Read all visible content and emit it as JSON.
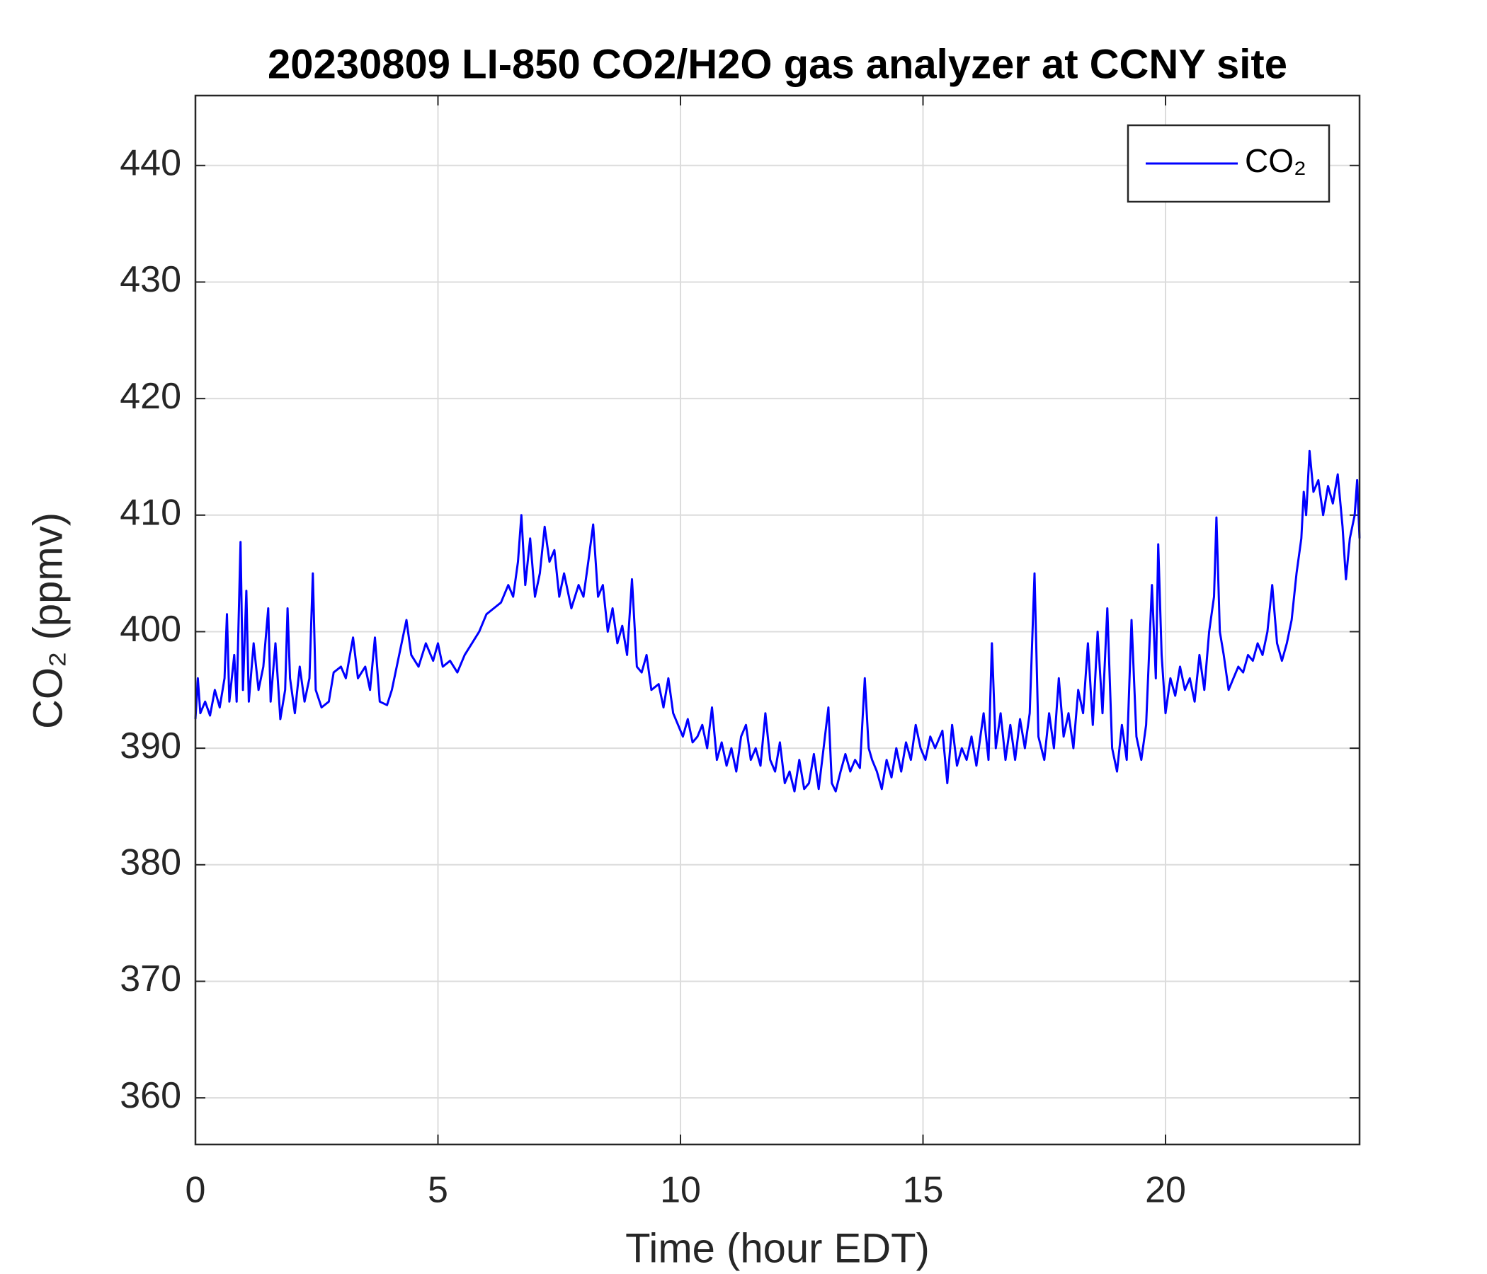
{
  "chart_data": {
    "type": "line",
    "title": "20230809 LI-850 CO2/H2O gas analyzer at CCNY site",
    "x_label": "Time (hour EDT)",
    "y_label": "CO₂ (ppmv)",
    "xlim": [
      0,
      24
    ],
    "xticks": [
      0,
      5,
      10,
      15,
      20
    ],
    "ylim": [
      356,
      446
    ],
    "yticks": [
      360,
      370,
      380,
      390,
      400,
      410,
      420,
      430,
      440
    ],
    "grid": true,
    "legend": "upper right",
    "series": [
      {
        "name": "CO₂",
        "color": "#0000ff",
        "x": [
          0,
          0.05,
          0.1,
          0.2,
          0.3,
          0.4,
          0.5,
          0.6,
          0.65,
          0.7,
          0.8,
          0.85,
          0.93,
          0.98,
          1.05,
          1.1,
          1.2,
          1.3,
          1.4,
          1.5,
          1.55,
          1.65,
          1.75,
          1.85,
          1.9,
          1.95,
          2.05,
          2.15,
          2.25,
          2.35,
          2.42,
          2.48,
          2.6,
          2.75,
          2.85,
          3.0,
          3.1,
          3.25,
          3.35,
          3.5,
          3.6,
          3.7,
          3.8,
          3.95,
          4.05,
          4.2,
          4.35,
          4.45,
          4.6,
          4.75,
          4.9,
          5.0,
          5.1,
          5.25,
          5.4,
          5.55,
          5.7,
          5.85,
          6.0,
          6.15,
          6.3,
          6.45,
          6.55,
          6.65,
          6.72,
          6.8,
          6.9,
          7.0,
          7.1,
          7.2,
          7.3,
          7.4,
          7.5,
          7.6,
          7.75,
          7.9,
          8.0,
          8.1,
          8.2,
          8.3,
          8.4,
          8.5,
          8.6,
          8.7,
          8.8,
          8.9,
          9.0,
          9.1,
          9.2,
          9.3,
          9.4,
          9.55,
          9.65,
          9.75,
          9.85,
          9.95,
          10.05,
          10.15,
          10.25,
          10.35,
          10.45,
          10.55,
          10.65,
          10.75,
          10.85,
          10.95,
          11.05,
          11.15,
          11.25,
          11.35,
          11.45,
          11.55,
          11.65,
          11.75,
          11.85,
          11.95,
          12.05,
          12.15,
          12.25,
          12.35,
          12.45,
          12.55,
          12.65,
          12.75,
          12.85,
          12.95,
          13.05,
          13.12,
          13.2,
          13.3,
          13.4,
          13.5,
          13.6,
          13.7,
          13.8,
          13.88,
          13.95,
          14.05,
          14.15,
          14.25,
          14.35,
          14.45,
          14.55,
          14.65,
          14.75,
          14.85,
          14.95,
          15.05,
          15.15,
          15.25,
          15.4,
          15.5,
          15.6,
          15.7,
          15.8,
          15.9,
          16.0,
          16.1,
          16.25,
          16.35,
          16.42,
          16.5,
          16.6,
          16.7,
          16.8,
          16.9,
          17.0,
          17.1,
          17.2,
          17.3,
          17.38,
          17.5,
          17.6,
          17.7,
          17.8,
          17.9,
          18.0,
          18.1,
          18.2,
          18.3,
          18.4,
          18.5,
          18.6,
          18.7,
          18.8,
          18.9,
          19.0,
          19.1,
          19.2,
          19.3,
          19.4,
          19.5,
          19.6,
          19.72,
          19.8,
          19.85,
          19.92,
          20.0,
          20.1,
          20.2,
          20.3,
          20.4,
          20.5,
          20.6,
          20.7,
          20.8,
          20.9,
          21.0,
          21.05,
          21.12,
          21.2,
          21.3,
          21.4,
          21.5,
          21.6,
          21.7,
          21.8,
          21.9,
          22.0,
          22.1,
          22.2,
          22.3,
          22.4,
          22.5,
          22.6,
          22.7,
          22.8,
          22.85,
          22.9,
          22.97,
          23.05,
          23.15,
          23.25,
          23.35,
          23.45,
          23.55,
          23.65,
          23.72,
          23.8,
          23.9,
          23.95,
          24.0
        ],
        "values": [
          392.5,
          396,
          393,
          394,
          392.8,
          395,
          393.5,
          396,
          401.5,
          394,
          398,
          394,
          407.7,
          395,
          403.5,
          394,
          399,
          395,
          397,
          402,
          394,
          399,
          392.5,
          395,
          402,
          396,
          393,
          397,
          394,
          396,
          405,
          395,
          393.5,
          394,
          396.5,
          397,
          396,
          399.5,
          396,
          397,
          395,
          399.5,
          394,
          393.7,
          395,
          398,
          401,
          398,
          397,
          399,
          397.5,
          399,
          397,
          397.5,
          396.5,
          398,
          399,
          400,
          401.5,
          402,
          402.5,
          404,
          403,
          406,
          410,
          404,
          408,
          403,
          405,
          409,
          406,
          407,
          403,
          405,
          402,
          404,
          403,
          406,
          409.2,
          403,
          404,
          400,
          402,
          399,
          400.5,
          398,
          404.5,
          397,
          396.5,
          398,
          395,
          395.5,
          393.5,
          396,
          393,
          392,
          391,
          392.5,
          390.5,
          391,
          392,
          390,
          393.5,
          389,
          390.5,
          388.5,
          390,
          388,
          391,
          392,
          389,
          390,
          388.5,
          393,
          389,
          388,
          390.5,
          387,
          388,
          386.3,
          389,
          386.5,
          387,
          389.5,
          386.5,
          390,
          393.5,
          387,
          386.3,
          388,
          389.5,
          388,
          389,
          388.3,
          396,
          390,
          389,
          388,
          386.5,
          389,
          387.5,
          390,
          388,
          390.5,
          389,
          392,
          390,
          389,
          391,
          390,
          391.5,
          387,
          392,
          388.5,
          390,
          389,
          391,
          388.5,
          393,
          389,
          399,
          390,
          393,
          389,
          392,
          389,
          392.5,
          390,
          393,
          405,
          391,
          389,
          393,
          390,
          396,
          391,
          393,
          390,
          395,
          393,
          399,
          392,
          400,
          393,
          402,
          390,
          388,
          392,
          389,
          401,
          391,
          389,
          392,
          404,
          396,
          407.5,
          398,
          393,
          396,
          394.5,
          397,
          395,
          396,
          394,
          398,
          395,
          400,
          403,
          409.8,
          400,
          398,
          395,
          396,
          397,
          396.5,
          398,
          397.5,
          399,
          398,
          400,
          404,
          399,
          397.5,
          399,
          401,
          405,
          408,
          412,
          410,
          415.5,
          412,
          413,
          410,
          412.5,
          411,
          413.5,
          409,
          404.5,
          408,
          410,
          413,
          408
        ]
      }
    ]
  }
}
